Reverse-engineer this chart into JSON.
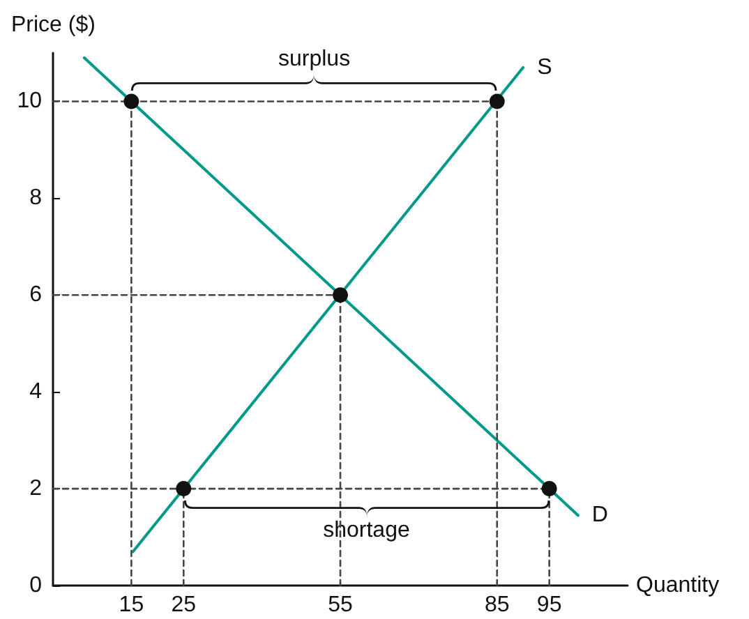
{
  "chart_data": {
    "type": "line",
    "xlabel": "Quantity",
    "ylabel": "Price ($)",
    "xlim": [
      0,
      110
    ],
    "ylim": [
      0,
      11
    ],
    "xticks": [
      15,
      25,
      55,
      85,
      95
    ],
    "yticks": [
      0,
      2,
      4,
      6,
      8,
      10
    ],
    "grid": false,
    "legend": false,
    "marker": "none",
    "line_style": "solid",
    "series": [
      {
        "name": "S",
        "color": "#00998a",
        "x": [
          15.3,
          90
        ],
        "values": [
          0.7,
          10.7
        ]
      },
      {
        "name": "D",
        "color": "#00998a",
        "x": [
          6,
          100.5
        ],
        "values": [
          10.9,
          1.45
        ]
      },
      {
        "color": "#444444",
        "line_style": "dashed",
        "x": [
          0,
          85
        ],
        "values": [
          10,
          10
        ]
      },
      {
        "color": "#444444",
        "line_style": "dashed",
        "x": [
          0,
          55
        ],
        "values": [
          6,
          6
        ]
      },
      {
        "color": "#444444",
        "line_style": "dashed",
        "x": [
          0,
          95
        ],
        "values": [
          2,
          2
        ]
      },
      {
        "color": "#444444",
        "line_style": "dashed",
        "x": [
          15,
          15
        ],
        "values": [
          0,
          10
        ]
      },
      {
        "color": "#444444",
        "line_style": "dashed",
        "x": [
          25,
          25
        ],
        "values": [
          0,
          2
        ]
      },
      {
        "color": "#444444",
        "line_style": "dashed",
        "x": [
          55,
          55
        ],
        "values": [
          0,
          6
        ]
      },
      {
        "color": "#444444",
        "line_style": "dashed",
        "x": [
          85,
          85
        ],
        "values": [
          0,
          10
        ]
      },
      {
        "color": "#444444",
        "line_style": "dashed",
        "x": [
          95,
          95
        ],
        "values": [
          0,
          2
        ]
      },
      {
        "type": "scatter",
        "color": "#111111",
        "marker": "circle",
        "x": [
          15,
          85,
          55,
          25,
          95
        ],
        "values": [
          10,
          10,
          6,
          2,
          2
        ]
      }
    ],
    "annotations": [
      "surplus",
      "shortage"
    ]
  }
}
